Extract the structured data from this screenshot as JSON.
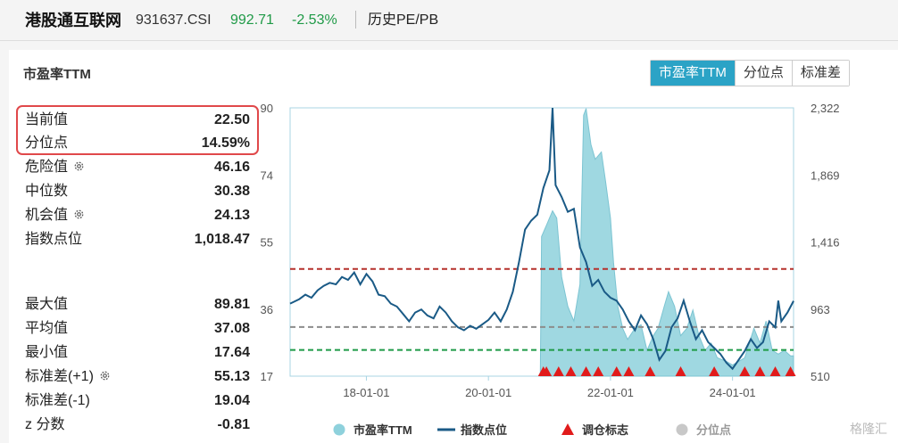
{
  "header": {
    "name": "港股通互联网",
    "code": "931637.CSI",
    "price": "992.71",
    "change": "-2.53%",
    "tab": "历史PE/PB"
  },
  "panel": {
    "title": "市盈率TTM",
    "tabs": [
      "市盈率TTM",
      "分位点",
      "标准差"
    ],
    "active_tab": 0
  },
  "stats": {
    "current_label": "当前值",
    "current_value": "22.50",
    "percentile_label": "分位点",
    "percentile_value": "14.59%",
    "danger_label": "危险值",
    "danger_value": "46.16",
    "median_label": "中位数",
    "median_value": "30.38",
    "chance_label": "机会值",
    "chance_value": "24.13",
    "index_label": "指数点位",
    "index_value": "1,018.47",
    "max_label": "最大值",
    "max_value": "89.81",
    "mean_label": "平均值",
    "mean_value": "37.08",
    "min_label": "最小值",
    "min_value": "17.64",
    "sd_plus_label": "标准差(+1)",
    "sd_plus_value": "55.13",
    "sd_minus_label": "标准差(-1)",
    "sd_minus_value": "19.04",
    "z_label": "z 分数",
    "z_value": "-0.81"
  },
  "chart_data": {
    "type": "line",
    "x_ticks": [
      "18-01-01",
      "20-01-01",
      "22-01-01",
      "24-01-01"
    ],
    "y_left_ticks": [
      "90",
      "74",
      "55",
      "36",
      "17"
    ],
    "y_right_ticks": [
      "2,322",
      "1,869",
      "1,416",
      "963",
      "510"
    ],
    "y_left_range": [
      17,
      90
    ],
    "y_right_range": [
      510,
      2322
    ],
    "x_range": [
      2016.75,
      2025.0
    ],
    "ref_lines": [
      {
        "value": 46.16,
        "color": "#b5312c"
      },
      {
        "value": 30.38,
        "color": "#8c8c8c"
      },
      {
        "value": 24.13,
        "color": "#1f9a47"
      }
    ],
    "pe_series": {
      "name": "市盈率TTM",
      "color": "#8ed1dc",
      "start": 2020.85,
      "points": [
        [
          2020.85,
          17.6
        ],
        [
          2020.87,
          55.0
        ],
        [
          2020.95,
          58.0
        ],
        [
          2021.05,
          62.0
        ],
        [
          2021.12,
          60.0
        ],
        [
          2021.2,
          44.0
        ],
        [
          2021.3,
          36.0
        ],
        [
          2021.4,
          32.0
        ],
        [
          2021.5,
          42.0
        ],
        [
          2021.56,
          88.0
        ],
        [
          2021.6,
          89.8
        ],
        [
          2021.68,
          80.0
        ],
        [
          2021.75,
          76.0
        ],
        [
          2021.85,
          78.0
        ],
        [
          2021.92,
          70.0
        ],
        [
          2022.0,
          60.0
        ],
        [
          2022.05,
          48.0
        ],
        [
          2022.12,
          36.0
        ],
        [
          2022.2,
          30.0
        ],
        [
          2022.28,
          27.0
        ],
        [
          2022.4,
          30.0
        ],
        [
          2022.5,
          31.0
        ],
        [
          2022.6,
          24.0
        ],
        [
          2022.7,
          28.0
        ],
        [
          2022.78,
          30.0
        ],
        [
          2022.88,
          36.0
        ],
        [
          2022.95,
          40.0
        ],
        [
          2023.05,
          36.0
        ],
        [
          2023.15,
          28.0
        ],
        [
          2023.25,
          30.0
        ],
        [
          2023.35,
          35.0
        ],
        [
          2023.45,
          28.0
        ],
        [
          2023.55,
          24.0
        ],
        [
          2023.65,
          26.0
        ],
        [
          2023.75,
          22.0
        ],
        [
          2023.9,
          21.0
        ],
        [
          2024.0,
          20.0
        ],
        [
          2024.2,
          22.0
        ],
        [
          2024.35,
          30.0
        ],
        [
          2024.45,
          26.0
        ],
        [
          2024.55,
          32.0
        ],
        [
          2024.65,
          24.0
        ],
        [
          2024.75,
          23.0
        ],
        [
          2024.85,
          24.0
        ],
        [
          2024.95,
          22.5
        ],
        [
          2025.0,
          22.5
        ]
      ]
    },
    "index_series": {
      "name": "指数点位",
      "color": "#1a5a86",
      "points": [
        [
          2016.75,
          1000
        ],
        [
          2016.9,
          1030
        ],
        [
          2017.0,
          1060
        ],
        [
          2017.1,
          1040
        ],
        [
          2017.2,
          1090
        ],
        [
          2017.3,
          1120
        ],
        [
          2017.4,
          1140
        ],
        [
          2017.5,
          1130
        ],
        [
          2017.6,
          1180
        ],
        [
          2017.7,
          1160
        ],
        [
          2017.8,
          1210
        ],
        [
          2017.9,
          1130
        ],
        [
          2018.0,
          1200
        ],
        [
          2018.1,
          1150
        ],
        [
          2018.2,
          1060
        ],
        [
          2018.3,
          1050
        ],
        [
          2018.4,
          1000
        ],
        [
          2018.5,
          980
        ],
        [
          2018.6,
          930
        ],
        [
          2018.7,
          880
        ],
        [
          2018.8,
          940
        ],
        [
          2018.9,
          960
        ],
        [
          2019.0,
          920
        ],
        [
          2019.1,
          900
        ],
        [
          2019.2,
          980
        ],
        [
          2019.3,
          940
        ],
        [
          2019.4,
          880
        ],
        [
          2019.5,
          840
        ],
        [
          2019.6,
          820
        ],
        [
          2019.7,
          850
        ],
        [
          2019.8,
          830
        ],
        [
          2019.9,
          860
        ],
        [
          2020.0,
          890
        ],
        [
          2020.1,
          940
        ],
        [
          2020.2,
          880
        ],
        [
          2020.3,
          960
        ],
        [
          2020.4,
          1080
        ],
        [
          2020.5,
          1280
        ],
        [
          2020.6,
          1500
        ],
        [
          2020.7,
          1560
        ],
        [
          2020.8,
          1600
        ],
        [
          2020.9,
          1780
        ],
        [
          2021.0,
          1900
        ],
        [
          2021.05,
          2322
        ],
        [
          2021.1,
          1800
        ],
        [
          2021.2,
          1720
        ],
        [
          2021.3,
          1620
        ],
        [
          2021.4,
          1640
        ],
        [
          2021.5,
          1380
        ],
        [
          2021.6,
          1280
        ],
        [
          2021.7,
          1120
        ],
        [
          2021.8,
          1160
        ],
        [
          2021.9,
          1080
        ],
        [
          2022.0,
          1040
        ],
        [
          2022.1,
          1020
        ],
        [
          2022.2,
          960
        ],
        [
          2022.3,
          880
        ],
        [
          2022.4,
          820
        ],
        [
          2022.5,
          920
        ],
        [
          2022.6,
          860
        ],
        [
          2022.7,
          760
        ],
        [
          2022.8,
          620
        ],
        [
          2022.9,
          680
        ],
        [
          2023.0,
          840
        ],
        [
          2023.1,
          900
        ],
        [
          2023.2,
          1020
        ],
        [
          2023.3,
          880
        ],
        [
          2023.4,
          760
        ],
        [
          2023.5,
          820
        ],
        [
          2023.6,
          740
        ],
        [
          2023.7,
          700
        ],
        [
          2023.8,
          660
        ],
        [
          2023.9,
          600
        ],
        [
          2024.0,
          560
        ],
        [
          2024.1,
          620
        ],
        [
          2024.2,
          680
        ],
        [
          2024.3,
          760
        ],
        [
          2024.4,
          700
        ],
        [
          2024.5,
          740
        ],
        [
          2024.6,
          880
        ],
        [
          2024.7,
          840
        ],
        [
          2024.75,
          1020
        ],
        [
          2024.8,
          880
        ],
        [
          2024.9,
          940
        ],
        [
          2025.0,
          1018
        ]
      ]
    },
    "markers": {
      "name": "调仓标志",
      "color": "#e11b1b",
      "x": [
        2020.9,
        2020.95,
        2021.15,
        2021.35,
        2021.6,
        2021.8,
        2022.1,
        2022.3,
        2022.65,
        2023.15,
        2023.7,
        2024.2,
        2024.45,
        2024.7,
        2024.95
      ]
    },
    "legend": [
      {
        "name": "市盈率TTM",
        "color": "#8ed1dc",
        "shape": "circle"
      },
      {
        "name": "指数点位",
        "color": "#1a5a86",
        "shape": "line"
      },
      {
        "name": "调仓标志",
        "color": "#e11b1b",
        "shape": "triangle"
      },
      {
        "name": "分位点",
        "color": "#c8c8c8",
        "shape": "circle"
      }
    ],
    "legend_position": "bottom",
    "grid": false
  },
  "watermark": "格隆汇"
}
